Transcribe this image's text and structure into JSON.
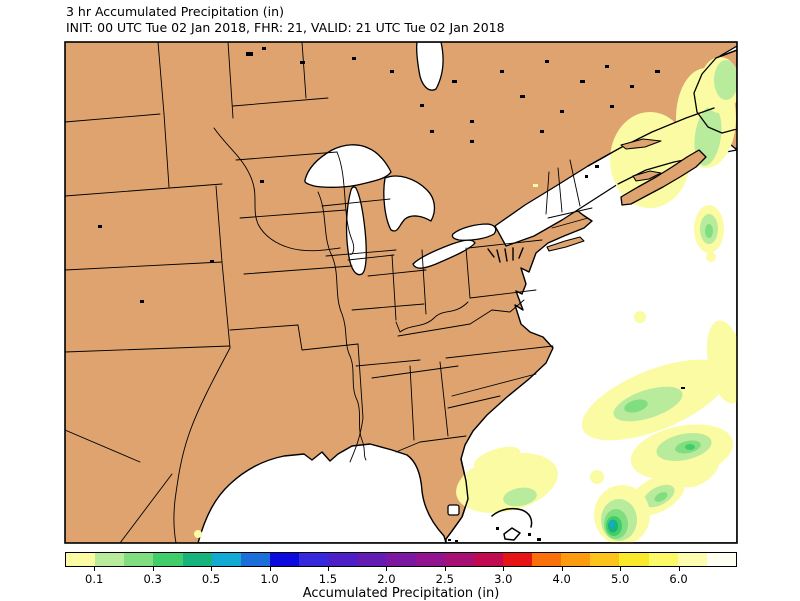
{
  "title": "3 hr Accumulated Precipitation (in)",
  "subtitle": "INIT: 00 UTC Tue 02 Jan 2018, FHR: 21, VALID: 21 UTC Tue 02 Jan 2018",
  "map": {
    "land_color": "#dea36f",
    "water_color": "#ffffff",
    "coast_color": "#000000"
  },
  "colorbar": {
    "label": "Accumulated Precipitation (in)",
    "levels": [
      0.01,
      0.1,
      0.2,
      0.3,
      0.4,
      0.5,
      0.75,
      1.0,
      1.25,
      1.5,
      1.75,
      2.0,
      2.25,
      2.5,
      2.75,
      3.0,
      3.5,
      4.0,
      4.5,
      5.0,
      5.5,
      6.0,
      7.0,
      8.0
    ],
    "colors": [
      "#fbfba4",
      "#b8eb9b",
      "#80dd80",
      "#41ce6a",
      "#18b27c",
      "#12a9d3",
      "#1c6fd8",
      "#0c0bdd",
      "#3629dc",
      "#4d1fc7",
      "#641bb4",
      "#7b17a1",
      "#911390",
      "#a70f74",
      "#c00b50",
      "#e61414",
      "#f9700a",
      "#fd9b0e",
      "#fcc31a",
      "#f8e92a",
      "#fbf968",
      "#fdfdb0",
      "#fffff2"
    ],
    "tick_labels": [
      "0.1",
      "0.3",
      "0.5",
      "1.0",
      "1.5",
      "2.0",
      "2.5",
      "3.0",
      "4.0",
      "5.0",
      "6.0"
    ],
    "tick_level_indices": [
      1,
      3,
      5,
      7,
      9,
      11,
      13,
      15,
      17,
      19,
      21
    ]
  },
  "chart_data": {
    "type": "heatmap",
    "title": "3 hr Accumulated Precipitation (in)",
    "units": "in",
    "init": "00 UTC Tue 02 Jan 2018",
    "forecast_hour": 21,
    "valid": "21 UTC Tue 02 Jan 2018",
    "region": "Central/eastern North America, Gulf of Mexico and western Atlantic",
    "contour_levels_in": [
      0.01,
      0.1,
      0.2,
      0.3,
      0.4,
      0.5,
      0.75,
      1.0,
      1.25,
      1.5,
      1.75,
      2.0,
      2.25,
      2.5,
      2.75,
      3.0,
      3.5,
      4.0,
      4.5,
      5.0,
      5.5,
      6.0,
      7.0,
      8.0
    ],
    "palette": [
      "#fbfba4",
      "#b8eb9b",
      "#80dd80",
      "#41ce6a",
      "#18b27c",
      "#12a9d3",
      "#1c6fd8",
      "#0c0bdd",
      "#3629dc",
      "#4d1fc7",
      "#641bb4",
      "#7b17a1",
      "#911390",
      "#a70f74",
      "#c00b50",
      "#e61414",
      "#f9700a",
      "#fd9b0e",
      "#fcc31a",
      "#f8e92a",
      "#fbf968",
      "#fdfdb0",
      "#fffff2"
    ],
    "legend_position": "bottom",
    "features": [
      {
        "area": "Gulf of St. Lawrence and western Newfoundland",
        "max_bin_in": "0.1-0.2"
      },
      {
        "area": "Top-right corner near eastern Newfoundland",
        "max_bin_in": "0.1-0.2"
      },
      {
        "area": "Atlantic southeast of Nova Scotia (small cell)",
        "max_bin_in": "0.2-0.3"
      },
      {
        "area": "Elongated band over open western Atlantic near Bermuda",
        "max_bin_in": "0.3-0.4"
      },
      {
        "area": "Atlantic off Florida / Carolinas toward Bahamas",
        "max_bin_in": "0.2-0.3"
      },
      {
        "area": "Strong cell just north of the Bahamas",
        "max_bin_in": "0.5-0.75"
      },
      {
        "area": "CONUS interior land areas",
        "max_bin_in": "none shown (< 0.01)"
      }
    ]
  }
}
